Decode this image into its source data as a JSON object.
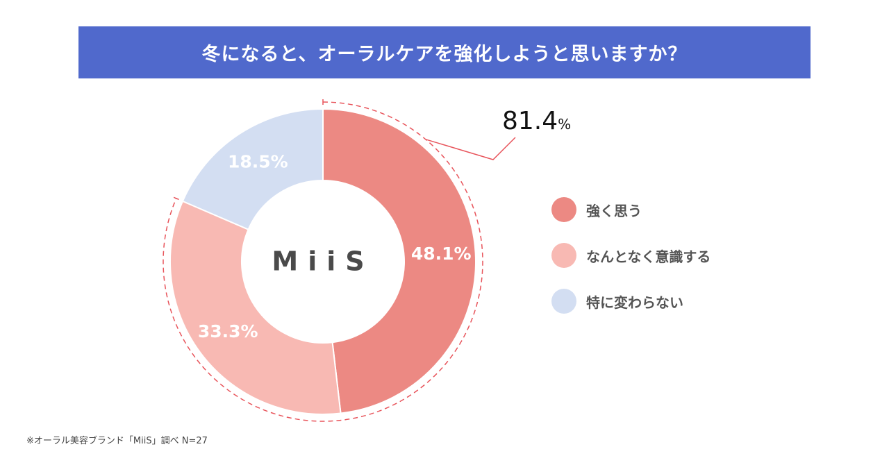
{
  "header": {
    "title": "冬になると、オーラルケアを強化しようと思いますか？"
  },
  "chart_data": {
    "type": "donut",
    "center_label": "MiiS",
    "series": [
      {
        "name": "強く思う",
        "value": 48.1,
        "label": "48.1%",
        "color": "#ec8983"
      },
      {
        "name": "なんとなく意識する",
        "value": 33.3,
        "label": "33.3%",
        "color": "#f8b9b3"
      },
      {
        "name": "特に変わらない",
        "value": 18.5,
        "label": "18.5%",
        "color": "#d3def2"
      }
    ],
    "callout": {
      "value": "81.4",
      "unit": "%",
      "covers": [
        "強く思う",
        "なんとなく意識する"
      ],
      "color": "#e8545b"
    },
    "legend_position": "right"
  },
  "footnote": "※オーラル美容ブランド「MiiS」調べ N=27"
}
